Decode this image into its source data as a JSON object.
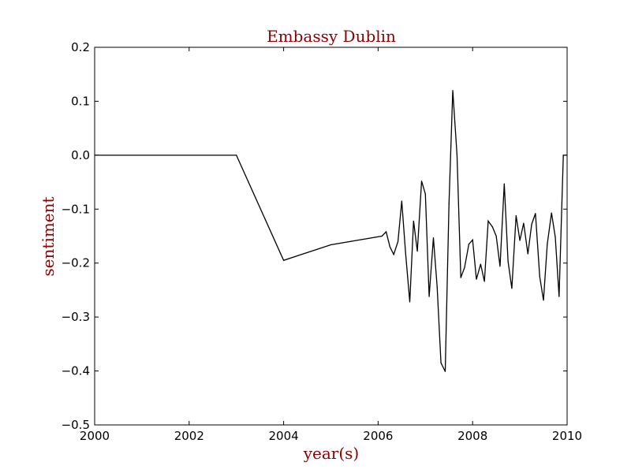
{
  "chart_data": {
    "type": "line",
    "title": "Embassy Dublin",
    "xlabel": "year(s)",
    "ylabel": "sentiment",
    "xlim": [
      2000,
      2010
    ],
    "ylim": [
      -0.5,
      0.2
    ],
    "x_ticks": [
      2000,
      2002,
      2004,
      2006,
      2008,
      2010
    ],
    "x_tick_labels": [
      "2000",
      "2002",
      "2004",
      "2006",
      "2008",
      "2010"
    ],
    "y_ticks": [
      0.2,
      0.1,
      0.0,
      -0.1,
      -0.2,
      -0.3,
      -0.4,
      -0.5
    ],
    "y_tick_labels": [
      "0.2",
      "0.1",
      "0.0",
      "−0.1",
      "−0.2",
      "−0.3",
      "−0.4",
      "−0.5"
    ],
    "grid": false,
    "legend": "none",
    "colors": {
      "line": "#000000",
      "title": "#8b0000",
      "axes": "#000000"
    },
    "series": [
      {
        "points": [
          [
            2000.0,
            0.0
          ],
          [
            2003.0,
            0.0
          ],
          [
            2004.0,
            -0.195
          ],
          [
            2005.0,
            -0.166
          ],
          [
            2006.08,
            -0.15
          ],
          [
            2006.17,
            -0.142
          ],
          [
            2006.25,
            -0.17
          ],
          [
            2006.33,
            -0.184
          ],
          [
            2006.42,
            -0.16
          ],
          [
            2006.5,
            -0.085
          ],
          [
            2006.58,
            -0.18
          ],
          [
            2006.67,
            -0.272
          ],
          [
            2006.75,
            -0.122
          ],
          [
            2006.83,
            -0.178
          ],
          [
            2006.92,
            -0.048
          ],
          [
            2007.0,
            -0.072
          ],
          [
            2007.08,
            -0.262
          ],
          [
            2007.17,
            -0.153
          ],
          [
            2007.25,
            -0.245
          ],
          [
            2007.33,
            -0.385
          ],
          [
            2007.42,
            -0.401
          ],
          [
            2007.5,
            -0.09
          ],
          [
            2007.58,
            0.12
          ],
          [
            2007.67,
            0.0
          ],
          [
            2007.75,
            -0.227
          ],
          [
            2007.83,
            -0.208
          ],
          [
            2007.92,
            -0.165
          ],
          [
            2008.0,
            -0.157
          ],
          [
            2008.08,
            -0.23
          ],
          [
            2008.17,
            -0.202
          ],
          [
            2008.25,
            -0.234
          ],
          [
            2008.33,
            -0.122
          ],
          [
            2008.42,
            -0.133
          ],
          [
            2008.5,
            -0.15
          ],
          [
            2008.58,
            -0.206
          ],
          [
            2008.67,
            -0.053
          ],
          [
            2008.75,
            -0.197
          ],
          [
            2008.83,
            -0.247
          ],
          [
            2008.92,
            -0.112
          ],
          [
            2009.0,
            -0.158
          ],
          [
            2009.08,
            -0.126
          ],
          [
            2009.17,
            -0.183
          ],
          [
            2009.25,
            -0.128
          ],
          [
            2009.33,
            -0.108
          ],
          [
            2009.42,
            -0.225
          ],
          [
            2009.5,
            -0.269
          ],
          [
            2009.58,
            -0.165
          ],
          [
            2009.67,
            -0.107
          ],
          [
            2009.75,
            -0.152
          ],
          [
            2009.83,
            -0.262
          ],
          [
            2009.92,
            0.0
          ],
          [
            2010.0,
            0.0
          ]
        ]
      }
    ]
  }
}
